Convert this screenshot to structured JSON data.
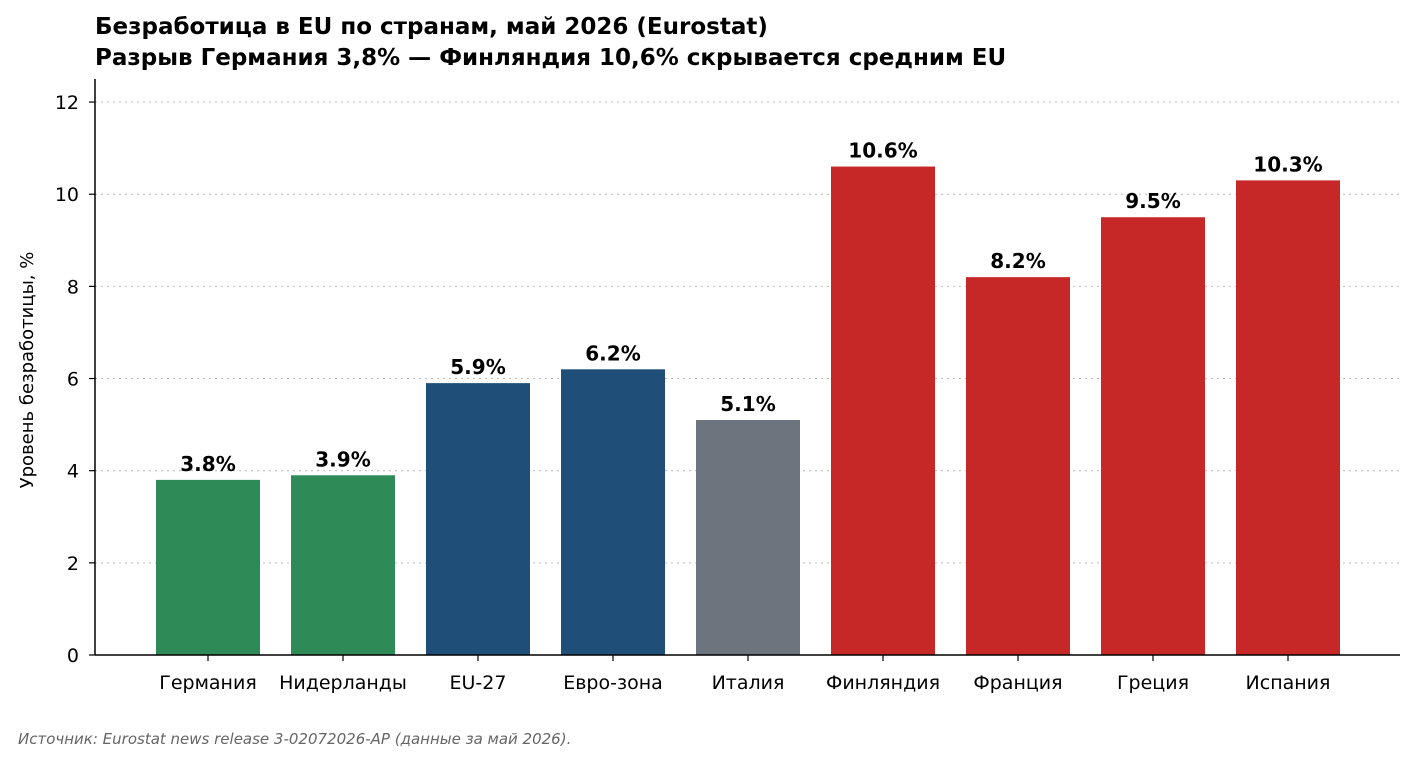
{
  "chart_data": {
    "type": "bar",
    "title": "Безработица в EU по странам, май 2026 (Eurostat)",
    "subtitle": "Разрыв Германия 3,8% — Финляндия 10,6% скрывается средним EU",
    "ylabel": "Уровень безработицы, %",
    "xlabel": "",
    "ylim": [
      0,
      12.5
    ],
    "yticks": [
      0,
      2,
      4,
      6,
      8,
      10,
      12
    ],
    "grid": "horizontal-dotted",
    "categories": [
      "Германия",
      "Нидерланды",
      "EU-27",
      "Евро-зона",
      "Италия",
      "Финляндия",
      "Франция",
      "Греция",
      "Испания"
    ],
    "values": [
      3.8,
      3.9,
      5.9,
      6.2,
      5.1,
      10.6,
      8.2,
      9.5,
      10.3
    ],
    "value_labels": [
      "3.8%",
      "3.9%",
      "5.9%",
      "6.2%",
      "5.1%",
      "10.6%",
      "8.2%",
      "9.5%",
      "10.3%"
    ],
    "bar_colors": [
      "#2e8b57",
      "#2e8b57",
      "#1f4e79",
      "#1f4e79",
      "#6c757d",
      "#c62828",
      "#c62828",
      "#c62828",
      "#c62828"
    ]
  },
  "source": "Источник: Eurostat news release 3-02072026-AP (данные за май 2026)."
}
